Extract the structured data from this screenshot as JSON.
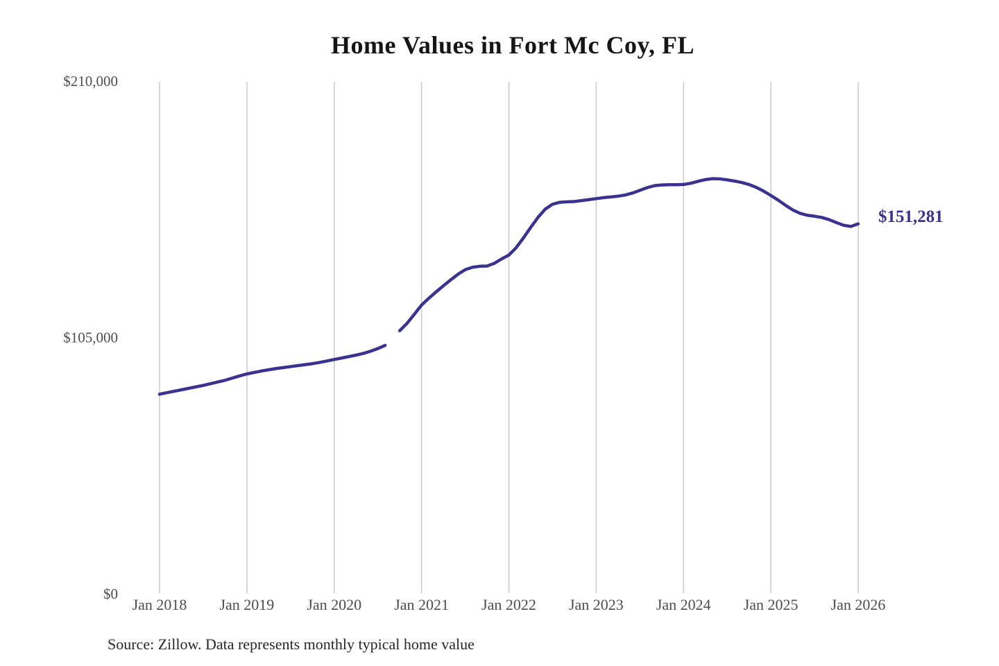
{
  "title": "Home Values in Fort Mc Coy, FL",
  "source_note": "Source: Zillow. Data represents monthly typical home value",
  "end_label": "$151,281",
  "colors": {
    "background": "#ffffff",
    "line": "#3a328f",
    "end_label": "#3a328f",
    "grid": "#cccccc",
    "axis_text": "#4d4d4d",
    "title_text": "#161616",
    "source_text": "#262626"
  },
  "chart_data": {
    "type": "line",
    "title": "Home Values in Fort Mc Coy, FL",
    "xlabel": "",
    "ylabel": "",
    "ylim": [
      0,
      210000
    ],
    "grid": "vertical-only",
    "legend": "none",
    "note": "gap in line where value is null (Sep 2020)",
    "yticks": [
      {
        "value": 0,
        "label": "$0"
      },
      {
        "value": 105000,
        "label": "$105,000"
      },
      {
        "value": 210000,
        "label": "$210,000"
      }
    ],
    "xticks": [
      "Jan 2018",
      "Jan 2019",
      "Jan 2020",
      "Jan 2021",
      "Jan 2022",
      "Jan 2023",
      "Jan 2024",
      "Jan 2025",
      "Jan 2026"
    ],
    "series": [
      {
        "name": "Monthly typical home value",
        "color": "#3a328f",
        "x": [
          "2018-01",
          "2018-02",
          "2018-03",
          "2018-04",
          "2018-05",
          "2018-06",
          "2018-07",
          "2018-08",
          "2018-09",
          "2018-10",
          "2018-11",
          "2018-12",
          "2019-01",
          "2019-02",
          "2019-03",
          "2019-04",
          "2019-05",
          "2019-06",
          "2019-07",
          "2019-08",
          "2019-09",
          "2019-10",
          "2019-11",
          "2019-12",
          "2020-01",
          "2020-02",
          "2020-03",
          "2020-04",
          "2020-05",
          "2020-06",
          "2020-07",
          "2020-08",
          "2020-09",
          "2020-10",
          "2020-11",
          "2020-12",
          "2021-01",
          "2021-02",
          "2021-03",
          "2021-04",
          "2021-05",
          "2021-06",
          "2021-07",
          "2021-08",
          "2021-09",
          "2021-10",
          "2021-11",
          "2021-12",
          "2022-01",
          "2022-02",
          "2022-03",
          "2022-04",
          "2022-05",
          "2022-06",
          "2022-07",
          "2022-08",
          "2022-09",
          "2022-10",
          "2022-11",
          "2022-12",
          "2023-01",
          "2023-02",
          "2023-03",
          "2023-04",
          "2023-05",
          "2023-06",
          "2023-07",
          "2023-08",
          "2023-09",
          "2023-10",
          "2023-11",
          "2023-12",
          "2024-01",
          "2024-02",
          "2024-03",
          "2024-04",
          "2024-05",
          "2024-06",
          "2024-07",
          "2024-08",
          "2024-09",
          "2024-10",
          "2024-11",
          "2024-12",
          "2025-01",
          "2025-02",
          "2025-03",
          "2025-04",
          "2025-05",
          "2025-06",
          "2025-07",
          "2025-08",
          "2025-09",
          "2025-10",
          "2025-11",
          "2025-12",
          "2026-01"
        ],
        "values": [
          81500,
          82100,
          82700,
          83300,
          83900,
          84500,
          85100,
          85800,
          86500,
          87200,
          88100,
          89000,
          89800,
          90400,
          91000,
          91500,
          92000,
          92400,
          92800,
          93200,
          93600,
          94000,
          94500,
          95100,
          95700,
          96300,
          96900,
          97500,
          98200,
          99100,
          100200,
          101500,
          null,
          107500,
          110500,
          114200,
          118000,
          120800,
          123400,
          125900,
          128300,
          130600,
          132500,
          133500,
          133900,
          134000,
          135100,
          136900,
          138500,
          141500,
          145500,
          149800,
          153900,
          157300,
          159300,
          160100,
          160300,
          160400,
          160800,
          161200,
          161600,
          162000,
          162300,
          162600,
          163100,
          163900,
          165000,
          166100,
          166900,
          167200,
          167300,
          167300,
          167400,
          167900,
          168700,
          169400,
          169800,
          169700,
          169300,
          168800,
          168200,
          167400,
          166200,
          164700,
          162900,
          161000,
          158900,
          157000,
          155600,
          154800,
          154400,
          153900,
          153000,
          151800,
          150700,
          150200,
          151281
        ]
      }
    ]
  }
}
